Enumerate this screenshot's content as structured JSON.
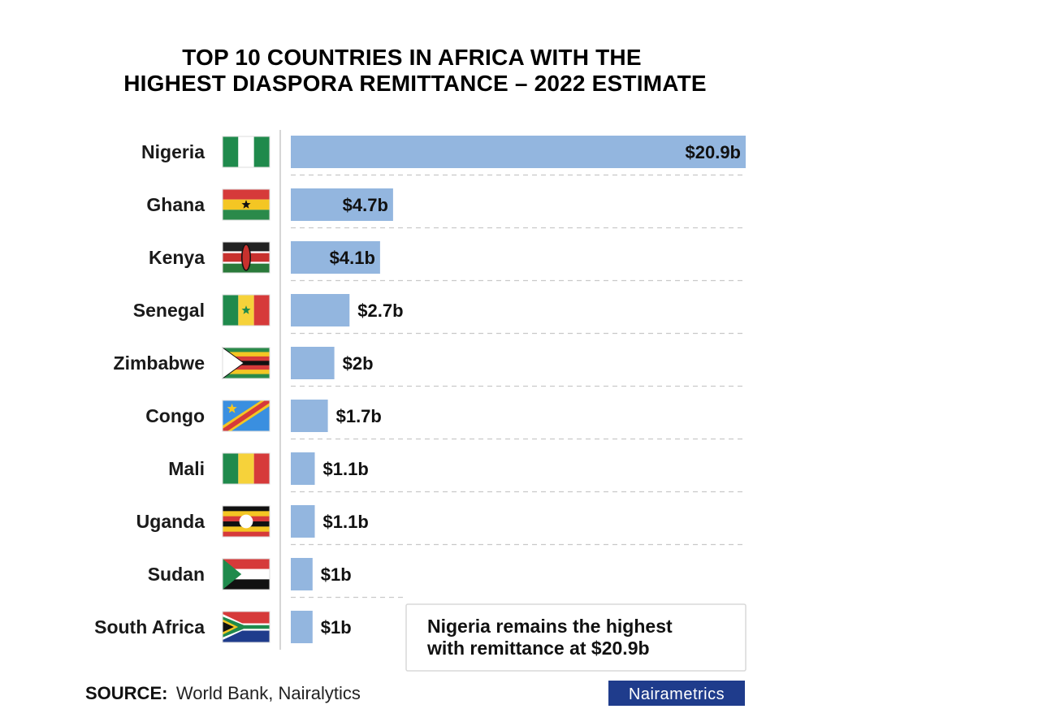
{
  "title_lines": [
    "TOP 10 COUNTRIES IN AFRICA WITH THE",
    "HIGHEST DIASPORA REMITTANCE – 2022 ESTIMATE"
  ],
  "colors": {
    "bar": "#93b6df",
    "text": "#111111",
    "brand_bg": "#1f3c8c"
  },
  "chart_data": {
    "type": "bar",
    "orientation": "horizontal",
    "title": "TOP 10 COUNTRIES IN AFRICA WITH THE HIGHEST DIASPORA REMITTANCE – 2022 ESTIMATE",
    "unit": "billion USD",
    "categories": [
      "Nigeria",
      "Ghana",
      "Kenya",
      "Senegal",
      "Zimbabwe",
      "Congo",
      "Mali",
      "Uganda",
      "Sudan",
      "South Africa"
    ],
    "values": [
      20.9,
      4.7,
      4.1,
      2.7,
      2.0,
      1.7,
      1.1,
      1.1,
      1.0,
      1.0
    ],
    "labels": [
      "$20.9b",
      "$4.7b",
      "$4.1b",
      "$2.7b",
      "$2b",
      "$1.7b",
      "$1.1b",
      "$1.1b",
      "$1b",
      "$1b"
    ],
    "flag_icons": [
      "nigeria-flag-icon",
      "ghana-flag-icon",
      "kenya-flag-icon",
      "senegal-flag-icon",
      "zimbabwe-flag-icon",
      "congo-flag-icon",
      "mali-flag-icon",
      "uganda-flag-icon",
      "sudan-flag-icon",
      "south-africa-flag-icon"
    ],
    "xlim": [
      0,
      20.9
    ],
    "grid": true,
    "legend": "none"
  },
  "callout": {
    "lines": [
      "Nigeria remains the highest",
      "with remittance at $20.9b"
    ]
  },
  "footer": {
    "source_label": "SOURCE:",
    "source_text": "World Bank, Nairalytics",
    "brand": "Nairametrics"
  }
}
